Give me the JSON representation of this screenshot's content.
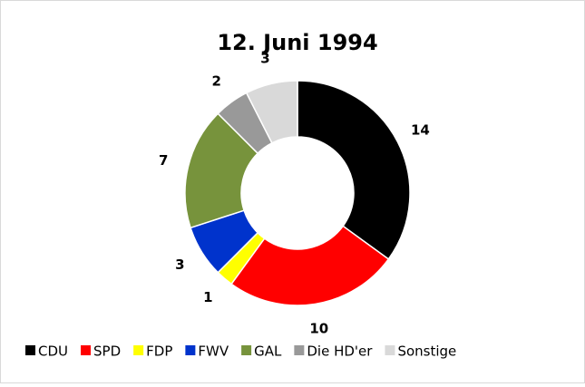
{
  "chart_data": {
    "type": "donut",
    "title": "12. Juni 1994",
    "categories": [
      "CDU",
      "SPD",
      "FDP",
      "FWV",
      "GAL",
      "Die HD'er",
      "Sonstige"
    ],
    "values": [
      14,
      10,
      1,
      3,
      7,
      2,
      3
    ],
    "colors": [
      "#000000",
      "#ff0000",
      "#ffff00",
      "#0033cc",
      "#77933c",
      "#999999",
      "#d9d9d9"
    ],
    "legend": "bottom"
  }
}
